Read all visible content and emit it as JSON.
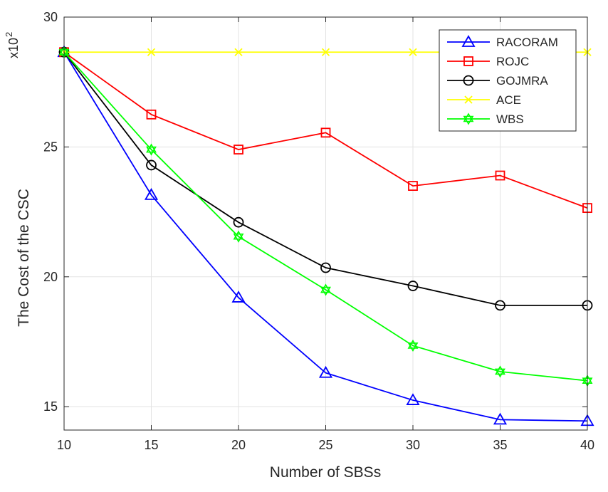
{
  "chart_data": {
    "type": "line",
    "title": "",
    "xlabel": "Number of SBSs",
    "ylabel": "The Cost of the CSC",
    "y_multiplier_base": "x10",
    "y_multiplier_exp": "2",
    "xlim": [
      10,
      40
    ],
    "ylim": [
      14.1,
      30
    ],
    "x": [
      10,
      15,
      20,
      25,
      30,
      35,
      40
    ],
    "x_ticks": [
      "10",
      "15",
      "20",
      "25",
      "30",
      "35",
      "40"
    ],
    "y_ticks": [
      15,
      20,
      25,
      30
    ],
    "y_tick_labels": [
      "15",
      "20",
      "25",
      "30"
    ],
    "grid": true,
    "legend_position": "top-right",
    "series": [
      {
        "name": "RACORAM",
        "color": "#0000ff",
        "marker": "triangle",
        "values": [
          28.65,
          23.15,
          19.2,
          16.3,
          15.25,
          14.5,
          14.45
        ]
      },
      {
        "name": "ROJC",
        "color": "#ff0000",
        "marker": "square",
        "values": [
          28.65,
          26.25,
          24.9,
          25.55,
          23.5,
          23.9,
          22.65
        ]
      },
      {
        "name": "GOJMRA",
        "color": "#000000",
        "marker": "circle",
        "values": [
          28.65,
          24.3,
          22.1,
          20.35,
          19.65,
          18.9,
          18.9
        ]
      },
      {
        "name": "ACE",
        "color": "#ffff00",
        "marker": "x",
        "values": [
          28.65,
          28.65,
          28.65,
          28.65,
          28.65,
          28.65,
          28.65
        ]
      },
      {
        "name": "WBS",
        "color": "#00ff00",
        "marker": "hexagram",
        "values": [
          28.65,
          24.9,
          21.55,
          19.5,
          17.35,
          16.35,
          16.0
        ]
      }
    ]
  }
}
